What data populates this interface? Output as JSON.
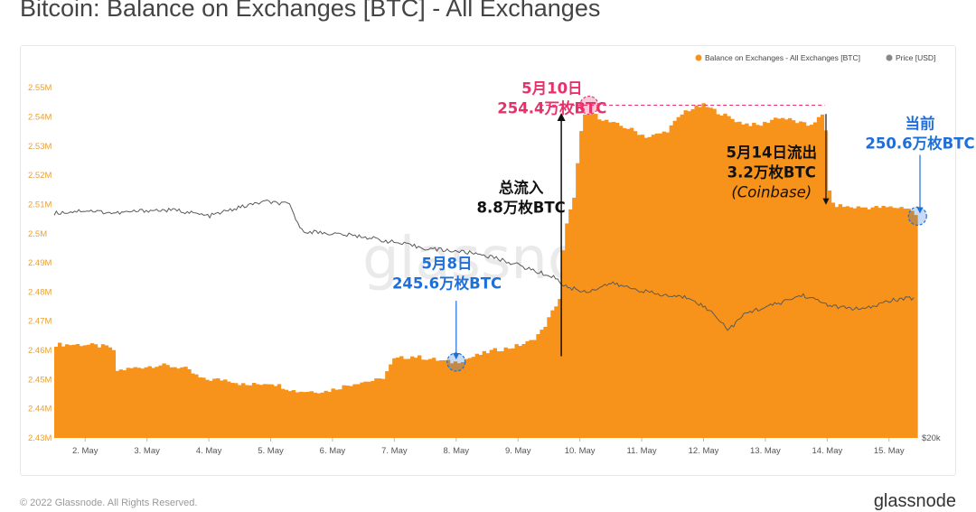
{
  "title": "Bitcoin: Balance on Exchanges [BTC] - All Exchanges",
  "footer": {
    "copyright": "© 2022 Glassnode. All Rights Reserved.",
    "logo": "glassnode"
  },
  "watermark": "glassnode",
  "colors": {
    "balance": "#F7931A",
    "price": "#5a5a5a",
    "annotation_pink": "#E8306A",
    "annotation_blue": "#1E6FD9",
    "annotation_black": "#111111",
    "axis_text": "#E8A13A"
  },
  "chart_data": {
    "type": "bar",
    "title": "Bitcoin: Balance on Exchanges [BTC] - All Exchanges",
    "legend": {
      "placement": "top-right",
      "entries": [
        "Balance on Exchanges - All Exchanges [BTC]",
        "Price [USD]"
      ]
    },
    "x_ticks": [
      "2. May",
      "3. May",
      "4. May",
      "5. May",
      "6. May",
      "7. May",
      "8. May",
      "9. May",
      "10. May",
      "11. May",
      "12. May",
      "13. May",
      "14. May",
      "15. May"
    ],
    "y_left": {
      "ylim": [
        2430000,
        2555000
      ],
      "ticks": [
        "2.43M",
        "2.44M",
        "2.45M",
        "2.46M",
        "2.47M",
        "2.48M",
        "2.49M",
        "2.5M",
        "2.51M",
        "2.52M",
        "2.53M",
        "2.54M",
        "2.55M"
      ]
    },
    "y_right": {
      "ticks": [
        "$20k"
      ]
    },
    "grid": false,
    "series": [
      {
        "name": "Balance on Exchanges - All Exchanges [BTC]",
        "axis": "left",
        "points": [
          [
            1.5,
            2462000
          ],
          [
            2.0,
            2462000
          ],
          [
            2.45,
            2461000
          ],
          [
            2.5,
            2453000
          ],
          [
            2.8,
            2454000
          ],
          [
            3.2,
            2455000
          ],
          [
            3.6,
            2454000
          ],
          [
            3.9,
            2450000
          ],
          [
            4.3,
            2450000
          ],
          [
            4.6,
            2448000
          ],
          [
            5.0,
            2449000
          ],
          [
            5.4,
            2446000
          ],
          [
            5.9,
            2446000
          ],
          [
            6.4,
            2449000
          ],
          [
            6.8,
            2450000
          ],
          [
            7.0,
            2457000
          ],
          [
            7.3,
            2458000
          ],
          [
            7.6,
            2457000
          ],
          [
            7.9,
            2456000
          ],
          [
            8.0,
            2456000
          ],
          [
            8.3,
            2458000
          ],
          [
            8.6,
            2460000
          ],
          [
            8.9,
            2461000
          ],
          [
            9.2,
            2463000
          ],
          [
            9.4,
            2467000
          ],
          [
            9.6,
            2475000
          ],
          [
            9.68,
            2478000
          ],
          [
            9.75,
            2500000
          ],
          [
            9.9,
            2512000
          ],
          [
            10.05,
            2540000
          ],
          [
            10.2,
            2541000
          ],
          [
            10.5,
            2538000
          ],
          [
            10.8,
            2536000
          ],
          [
            11.1,
            2533000
          ],
          [
            11.4,
            2535000
          ],
          [
            11.7,
            2542000
          ],
          [
            12.0,
            2544000
          ],
          [
            12.3,
            2541000
          ],
          [
            12.6,
            2538000
          ],
          [
            12.9,
            2537000
          ],
          [
            13.2,
            2540000
          ],
          [
            13.4,
            2539000
          ],
          [
            13.7,
            2537000
          ],
          [
            13.96,
            2541000
          ],
          [
            14.05,
            2510000
          ],
          [
            14.4,
            2509000
          ],
          [
            14.8,
            2509000
          ],
          [
            15.3,
            2509000
          ],
          [
            15.46,
            2506000
          ]
        ]
      },
      {
        "name": "Price [USD]",
        "axis": "right",
        "points": [
          [
            1.5,
            2507000
          ],
          [
            2.0,
            2508000
          ],
          [
            2.5,
            2507000
          ],
          [
            3.0,
            2508000
          ],
          [
            3.5,
            2508000
          ],
          [
            4.0,
            2506000
          ],
          [
            4.5,
            2509000
          ],
          [
            4.9,
            2511000
          ],
          [
            5.3,
            2510000
          ],
          [
            5.5,
            2501000
          ],
          [
            6.0,
            2500000
          ],
          [
            6.5,
            2499000
          ],
          [
            7.0,
            2497000
          ],
          [
            7.5,
            2495000
          ],
          [
            8.0,
            2494000
          ],
          [
            8.4,
            2493000
          ],
          [
            8.9,
            2490000
          ],
          [
            9.3,
            2487000
          ],
          [
            9.6,
            2485000
          ],
          [
            9.75,
            2482000
          ],
          [
            10.1,
            2480000
          ],
          [
            10.5,
            2483000
          ],
          [
            10.9,
            2481000
          ],
          [
            11.3,
            2479000
          ],
          [
            11.8,
            2478000
          ],
          [
            12.2,
            2472000
          ],
          [
            12.4,
            2467000
          ],
          [
            12.7,
            2473000
          ],
          [
            13.2,
            2476000
          ],
          [
            13.6,
            2479000
          ],
          [
            14.1,
            2475000
          ],
          [
            14.6,
            2474000
          ],
          [
            15.0,
            2477000
          ],
          [
            15.4,
            2478000
          ]
        ]
      }
    ],
    "annotations": [
      {
        "lines": [
          "5月10日",
          "254.4万枚BTC"
        ],
        "color": "pink",
        "x": 9.55,
        "y": 2548000
      },
      {
        "lines": [
          "总流入",
          "8.8万枚BTC"
        ],
        "color": "black",
        "x": 9.05,
        "y": 2514000
      },
      {
        "lines": [
          "5月14日流出",
          "3.2万枚BTC",
          "(Coinbase)"
        ],
        "color": "black",
        "x": 13.1,
        "y": 2526000
      },
      {
        "lines": [
          "当前",
          "250.6万枚BTC"
        ],
        "color": "blue",
        "x": 15.5,
        "y": 2536000
      },
      {
        "lines": [
          "5月8日",
          "245.6万枚BTC"
        ],
        "color": "blue",
        "x": 7.85,
        "y": 2488000
      }
    ],
    "markers": [
      {
        "x": 10.15,
        "y": 2544000,
        "color": "pink"
      },
      {
        "x": 15.46,
        "y": 2506000,
        "color": "blue"
      },
      {
        "x": 8.0,
        "y": 2456000,
        "color": "blue"
      }
    ]
  }
}
